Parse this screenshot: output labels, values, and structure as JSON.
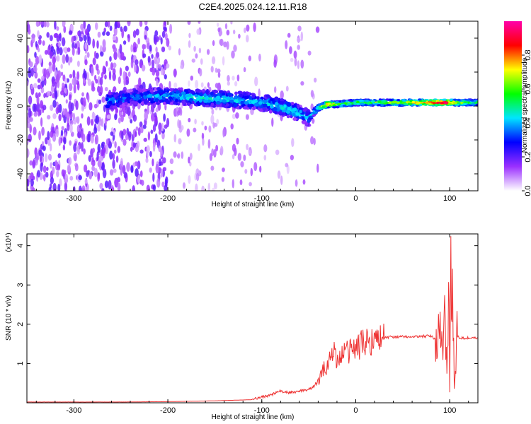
{
  "chart_data": [
    {
      "type": "heatmap",
      "title": "C2E4.2025.024.12.11.R18",
      "xlabel": "Height of straight line (km)",
      "ylabel": "Frequency (Hz)",
      "xlim": [
        -350,
        130
      ],
      "ylim": [
        -50,
        50
      ],
      "xticks": [
        -300,
        -200,
        -100,
        0,
        100
      ],
      "yticks": [
        -40,
        -20,
        0,
        20,
        40
      ],
      "grid": false,
      "colorbar": {
        "label": "Normalized spectral amplitude",
        "range": [
          0,
          1
        ],
        "ticks": [
          "0.0",
          "0.2",
          "0.4",
          "0.6",
          "0.8"
        ],
        "colors": [
          "#ffffff",
          "#9b30ff",
          "#0000ff",
          "#00e5ff",
          "#00ff00",
          "#ffff00",
          "#ff0000",
          "#ff00aa"
        ]
      },
      "ridge": {
        "x": [
          -260,
          -240,
          -200,
          -170,
          -140,
          -110,
          -90,
          -70,
          -50,
          -40,
          -30,
          -20,
          0,
          20,
          40,
          60,
          80,
          95,
          110,
          130
        ],
        "freq": [
          3,
          5,
          6,
          5,
          4,
          3,
          1,
          -2,
          -7,
          -1,
          1,
          1,
          2,
          2,
          2,
          2,
          2,
          2,
          2,
          2
        ],
        "amplitude": [
          0.35,
          0.3,
          0.38,
          0.42,
          0.4,
          0.38,
          0.4,
          0.42,
          0.35,
          0.55,
          0.75,
          0.6,
          0.55,
          0.55,
          0.6,
          0.7,
          0.8,
          0.9,
          0.6,
          0.5
        ]
      }
    },
    {
      "type": "line",
      "xlabel": "Height of straight line (km)",
      "ylabel": "SNR (10 * v/v)",
      "yexponent": "(x10⁴)",
      "xlim": [
        -350,
        130
      ],
      "ylim": [
        0,
        4.3
      ],
      "xticks": [
        -300,
        -200,
        -100,
        0,
        100
      ],
      "yticks": [
        1,
        2,
        3,
        4
      ],
      "grid": false,
      "color": "#ee3333",
      "series": [
        {
          "x": [
            -350,
            -300,
            -250,
            -200,
            -150,
            -110,
            -100,
            -90,
            -80,
            -70,
            -60,
            -50,
            -45,
            -40,
            -35,
            -30,
            -25,
            -22,
            -20,
            -18,
            -15,
            -10,
            -5,
            0,
            10,
            20,
            30,
            40,
            60,
            80,
            85,
            88,
            92,
            95,
            97,
            99,
            100,
            101,
            102,
            103,
            105,
            108,
            110,
            120,
            130
          ],
          "y": [
            0.02,
            0.02,
            0.02,
            0.03,
            0.05,
            0.08,
            0.15,
            0.2,
            0.3,
            0.25,
            0.3,
            0.35,
            0.4,
            0.55,
            0.8,
            1.0,
            1.2,
            1.5,
            1.0,
            1.1,
            1.2,
            1.3,
            1.35,
            1.4,
            1.55,
            1.62,
            1.66,
            1.68,
            1.68,
            1.7,
            1.6,
            1.9,
            1.2,
            2.3,
            1.0,
            3.5,
            0.3,
            4.3,
            1.0,
            3.0,
            0.3,
            1.7,
            1.65,
            1.65,
            1.64
          ]
        }
      ]
    }
  ]
}
